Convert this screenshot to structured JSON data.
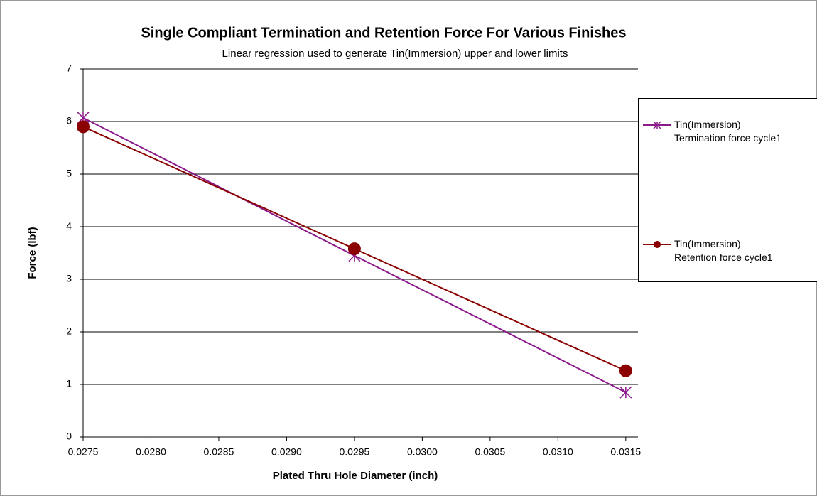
{
  "chart_data": {
    "type": "line",
    "title": "Single Compliant Termination and  Retention Force For Various Finishes",
    "subtitle": "Linear regression used to generate Tin(Immersion) upper and lower limits",
    "x_label": "Plated Thru Hole Diameter (inch)",
    "y_label": "Force (lbf)",
    "x": [
      0.0275,
      0.0295,
      0.0315
    ],
    "series": [
      {
        "name": "Tin(Immersion)\nTermination force cycle1",
        "color": "#8b1a8b",
        "marker": "asterisk",
        "values": [
          6.07,
          3.45,
          0.85
        ]
      },
      {
        "name": "Tin(Immersion)\nRetention force cycle1",
        "color": "#8b0000",
        "marker": "circle",
        "values": [
          5.9,
          3.58,
          1.26
        ]
      }
    ],
    "xlim": [
      0.0275,
      0.03159
    ],
    "xticks": [
      {
        "value": 0.0275,
        "label": "0.0275"
      },
      {
        "value": 0.028,
        "label": "0.0280"
      },
      {
        "value": 0.0285,
        "label": "0.0285"
      },
      {
        "value": 0.029,
        "label": "0.0290"
      },
      {
        "value": 0.0295,
        "label": "0.0295"
      },
      {
        "value": 0.03,
        "label": "0.0300"
      },
      {
        "value": 0.0305,
        "label": "0.0305"
      },
      {
        "value": 0.031,
        "label": "0.0310"
      },
      {
        "value": 0.0315,
        "label": "0.0315"
      }
    ],
    "ylim": [
      0,
      7
    ],
    "yticks": [
      0,
      1,
      2,
      3,
      4,
      5,
      6,
      7
    ],
    "grid": true,
    "legend": "right"
  }
}
